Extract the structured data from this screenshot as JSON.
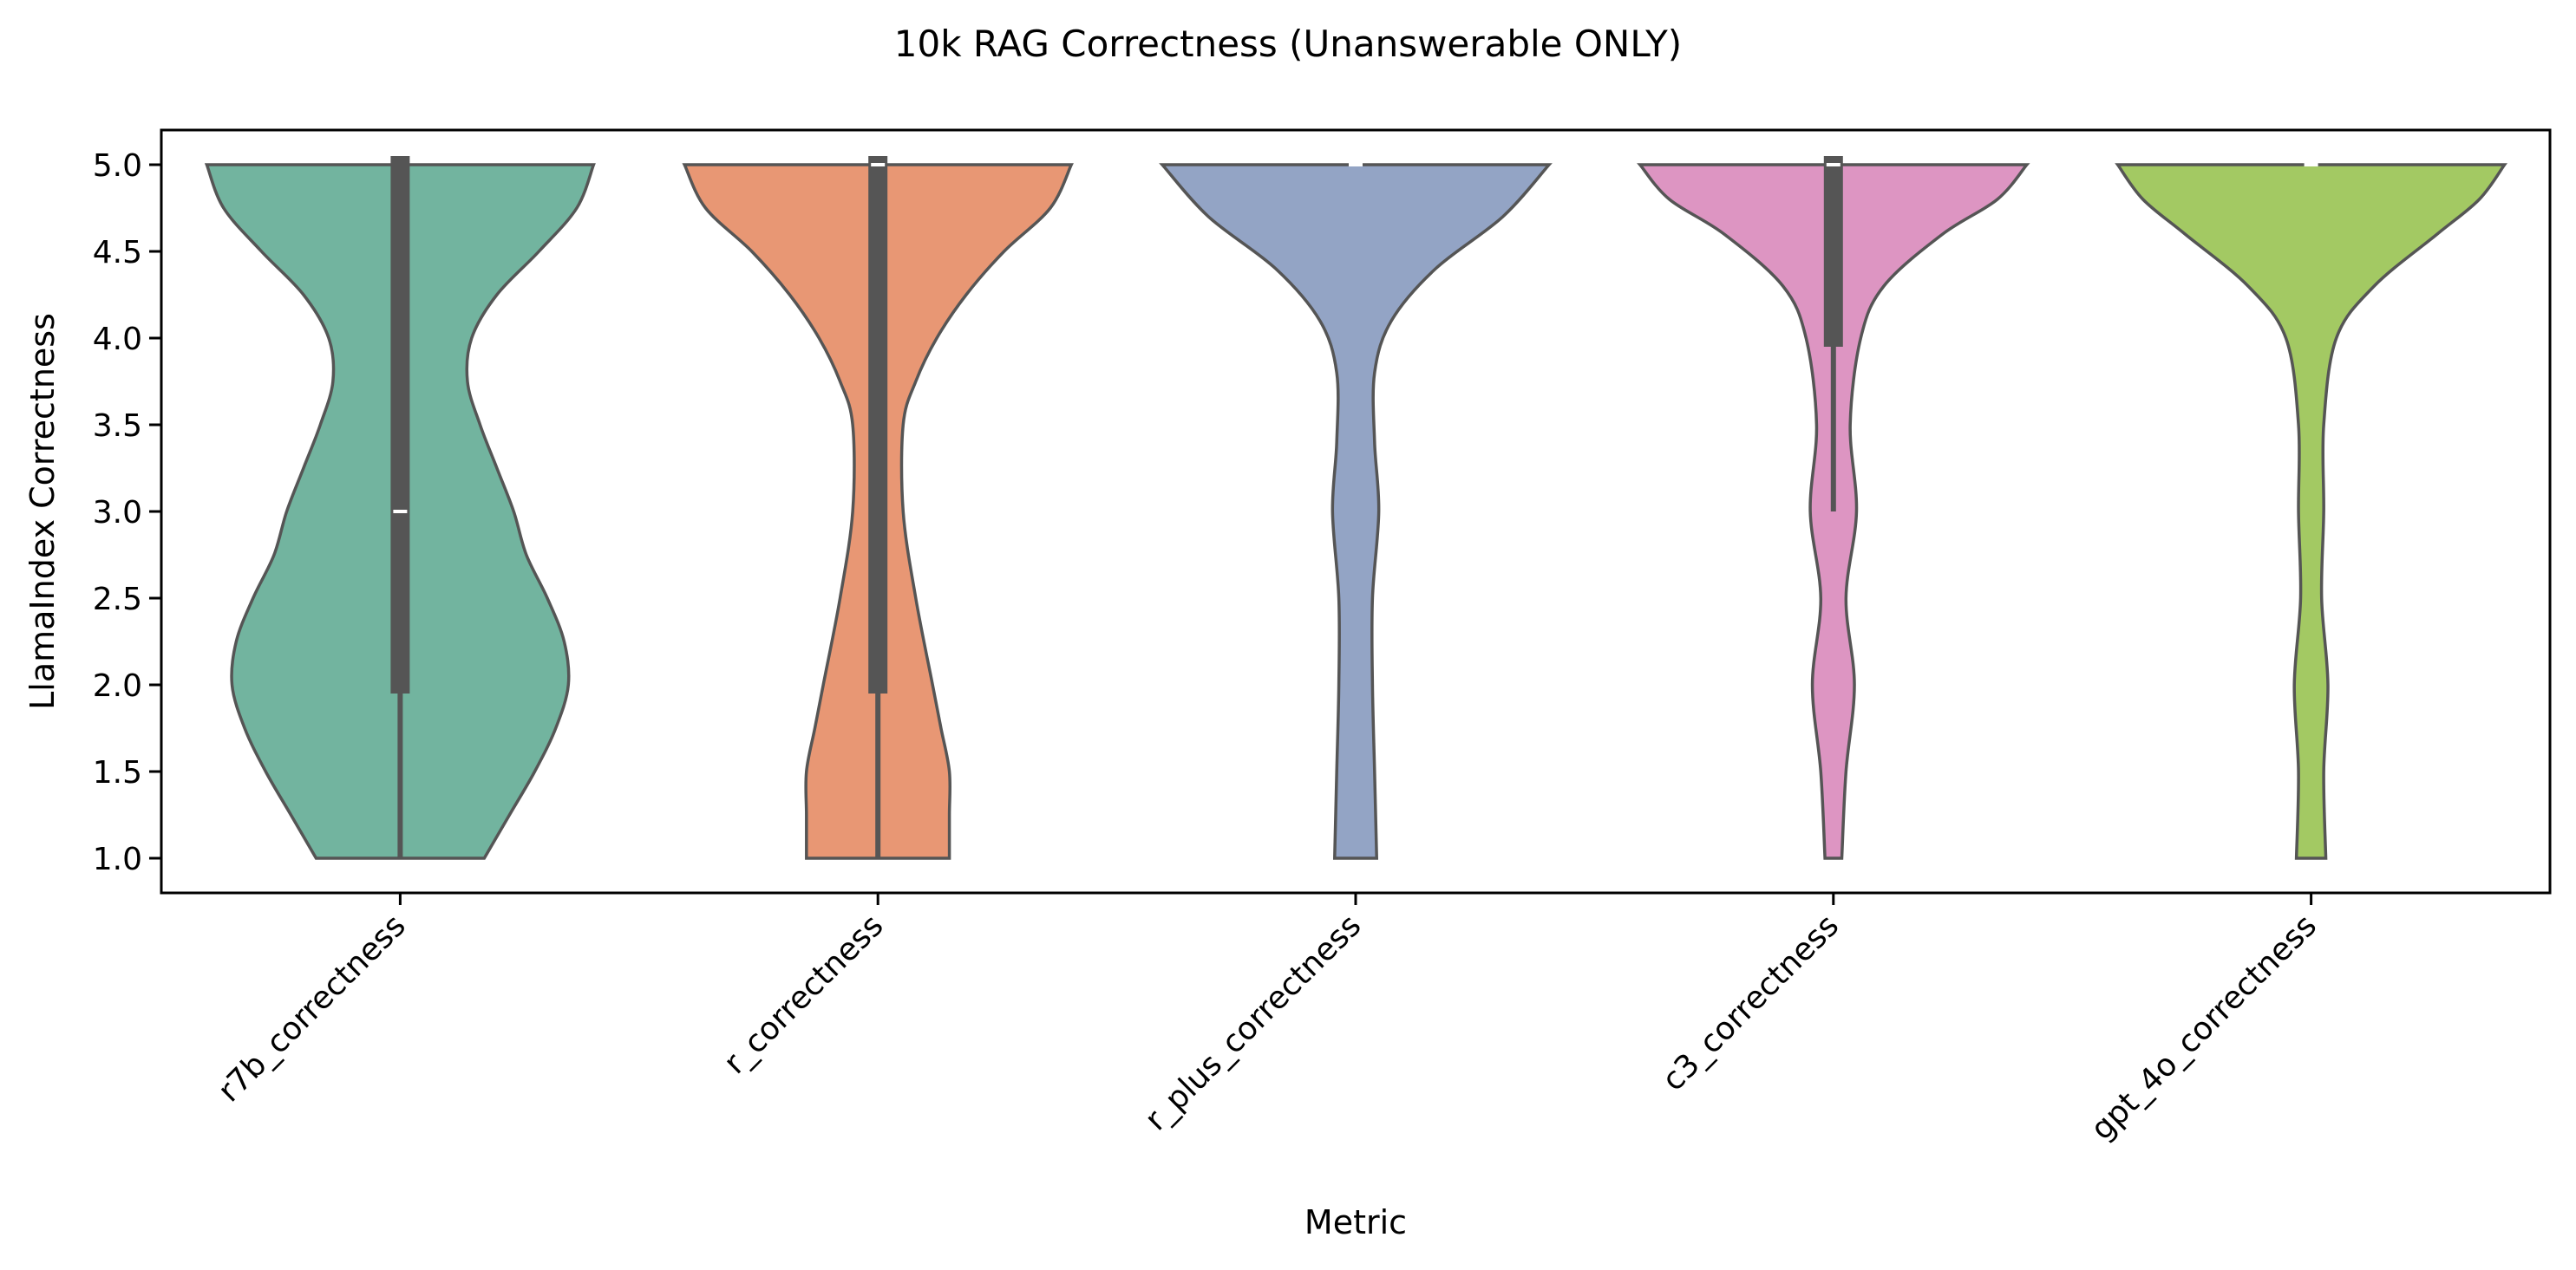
{
  "chart_data": {
    "type": "violin",
    "title": "10k RAG Correctness (Unanswerable ONLY)",
    "xlabel": "Metric",
    "ylabel": "LlamaIndex Correctness",
    "ylim": [
      0.8,
      5.2
    ],
    "yticks": [
      "1.0",
      "1.5",
      "2.0",
      "2.5",
      "3.0",
      "3.5",
      "4.0",
      "4.5",
      "5.0"
    ],
    "grid": false,
    "categories": [
      "r7b_correctness",
      "r_correctness",
      "r_plus_correctness",
      "c3_correctness",
      "gpt_4o_correctness"
    ],
    "colors": [
      "#72b49f",
      "#e89774",
      "#93a4c5",
      "#dd95c2",
      "#a3c963"
    ],
    "violins": [
      {
        "name": "r7b_correctness",
        "median": 3.0,
        "q1": 1.95,
        "q3": 5.0,
        "whisker_low": 1.0,
        "whisker_high": 5.0,
        "density": [
          [
            1.0,
            0.2
          ],
          [
            1.25,
            0.26
          ],
          [
            1.5,
            0.32
          ],
          [
            1.75,
            0.37
          ],
          [
            2.0,
            0.4
          ],
          [
            2.25,
            0.39
          ],
          [
            2.5,
            0.35
          ],
          [
            2.75,
            0.3
          ],
          [
            3.0,
            0.27
          ],
          [
            3.25,
            0.23
          ],
          [
            3.5,
            0.19
          ],
          [
            3.75,
            0.16
          ],
          [
            4.0,
            0.17
          ],
          [
            4.25,
            0.23
          ],
          [
            4.5,
            0.33
          ],
          [
            4.75,
            0.42
          ],
          [
            5.0,
            0.46
          ]
        ]
      },
      {
        "name": "r_correctness",
        "median": 5.0,
        "q1": 1.95,
        "q3": 5.0,
        "whisker_low": 1.0,
        "whisker_high": 5.0,
        "density": [
          [
            1.0,
            0.17
          ],
          [
            1.25,
            0.17
          ],
          [
            1.5,
            0.17
          ],
          [
            1.75,
            0.15
          ],
          [
            2.0,
            0.13
          ],
          [
            2.5,
            0.09
          ],
          [
            3.0,
            0.06
          ],
          [
            3.5,
            0.06
          ],
          [
            3.75,
            0.09
          ],
          [
            4.0,
            0.14
          ],
          [
            4.25,
            0.21
          ],
          [
            4.5,
            0.3
          ],
          [
            4.75,
            0.41
          ],
          [
            5.0,
            0.46
          ]
        ]
      },
      {
        "name": "r_plus_correctness",
        "median": 5.0,
        "q1": 5.0,
        "q3": 5.0,
        "whisker_low": 5.0,
        "whisker_high": 5.0,
        "density": [
          [
            1.0,
            0.05
          ],
          [
            1.5,
            0.045
          ],
          [
            2.0,
            0.04
          ],
          [
            2.5,
            0.04
          ],
          [
            3.0,
            0.055
          ],
          [
            3.4,
            0.045
          ],
          [
            3.8,
            0.045
          ],
          [
            4.1,
            0.085
          ],
          [
            4.4,
            0.19
          ],
          [
            4.7,
            0.35
          ],
          [
            5.0,
            0.46
          ]
        ]
      },
      {
        "name": "c3_correctness",
        "median": 5.0,
        "q1": 3.95,
        "q3": 5.0,
        "whisker_low": 3.0,
        "whisker_high": 5.0,
        "density": [
          [
            1.0,
            0.02
          ],
          [
            1.5,
            0.03
          ],
          [
            2.0,
            0.05
          ],
          [
            2.5,
            0.03
          ],
          [
            3.0,
            0.055
          ],
          [
            3.5,
            0.04
          ],
          [
            4.0,
            0.065
          ],
          [
            4.3,
            0.12
          ],
          [
            4.6,
            0.26
          ],
          [
            4.8,
            0.39
          ],
          [
            5.0,
            0.46
          ]
        ]
      },
      {
        "name": "gpt_4o_correctness",
        "median": 5.0,
        "q1": 5.0,
        "q3": 5.0,
        "whisker_low": 5.0,
        "whisker_high": 5.0,
        "density": [
          [
            1.0,
            0.035
          ],
          [
            1.5,
            0.03
          ],
          [
            2.0,
            0.04
          ],
          [
            2.5,
            0.025
          ],
          [
            3.0,
            0.03
          ],
          [
            3.5,
            0.03
          ],
          [
            4.0,
            0.06
          ],
          [
            4.3,
            0.15
          ],
          [
            4.6,
            0.3
          ],
          [
            4.8,
            0.4
          ],
          [
            5.0,
            0.46
          ]
        ]
      }
    ]
  }
}
